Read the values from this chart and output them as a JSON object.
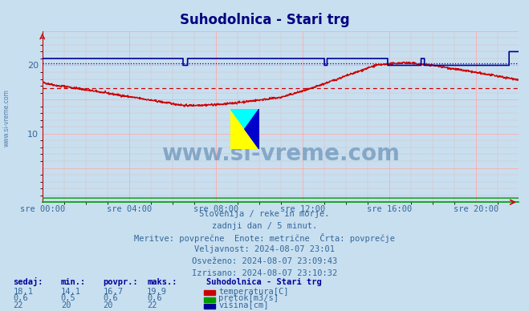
{
  "title": "Suhodolnica - Stari trg",
  "title_color": "#000080",
  "background_color": "#c8dff0",
  "plot_bg_color": "#c8dff0",
  "grid_major_color": "#ffaaaa",
  "grid_minor_color": "#ddbbbb",
  "text_color": "#336699",
  "xtick_labels": [
    "sre 00:00",
    "sre 04:00",
    "sre 08:00",
    "sre 12:00",
    "sre 16:00",
    "sre 20:00"
  ],
  "xtick_positions": [
    0,
    288,
    576,
    864,
    1152,
    1440
  ],
  "ylim": [
    0,
    25
  ],
  "xlim": [
    0,
    1580
  ],
  "n_points": 1580,
  "temp_color": "#cc0000",
  "flow_color": "#009900",
  "height_color": "#000099",
  "avg_temp": 16.7,
  "avg_height": 20.3,
  "avg_flow": 0.6,
  "min_temp": 14.1,
  "max_temp": 19.9,
  "min_height": 20,
  "max_height": 22,
  "min_flow": 0.5,
  "max_flow": 0.6,
  "cur_temp": "18,1",
  "cur_flow": "0,6",
  "cur_height": "22",
  "min_temp_str": "14,1",
  "min_flow_str": "0,5",
  "min_height_str": "20",
  "avg_temp_str": "16,7",
  "avg_flow_str": "0,6",
  "avg_height_str": "20",
  "max_temp_str": "19,9",
  "max_flow_str": "0,6",
  "max_height_str": "22",
  "subtitle1": "Slovenija / reke in morje.",
  "subtitle2": "zadnji dan / 5 minut.",
  "subtitle3": "Meritve: povprečne  Enote: metrične  Črta: povprečje",
  "validity": "Veljavnost: 2024-08-07 23:01",
  "updated": "Osveženo: 2024-08-07 23:09:43",
  "drawn": "Izrisano: 2024-08-07 23:10:32",
  "legend_title": "Suhodolnica - Stari trg",
  "watermark": "www.si-vreme.com",
  "left_label": "www.si-vreme.com",
  "header_sedaj": "sedaj:",
  "header_min": "min.:",
  "header_povpr": "povpr.:",
  "header_maks": "maks.:",
  "label_temp": "temperatura[C]",
  "label_flow": "pretok[m3/s]",
  "label_height": "višina[cm]"
}
